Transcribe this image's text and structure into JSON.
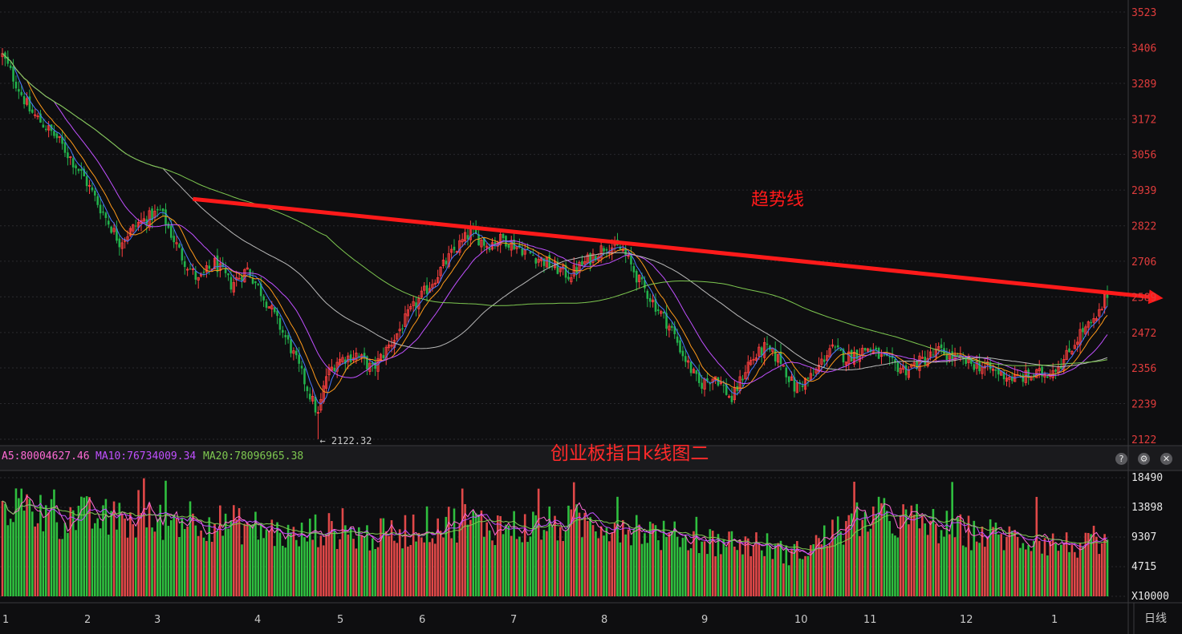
{
  "colors": {
    "background": "#0e0e10",
    "grid": "#2a2a2e",
    "up": "#ff4040",
    "down": "#22b14c",
    "axis_text": "#e03c3c",
    "ma5": "#4a78ff",
    "ma10": "#ff9a1a",
    "ma20": "#c050ff",
    "ma60": "#b8b8b8",
    "ma120": "#7ec850",
    "trend": "#ff1a1a"
  },
  "chart_title": "创业板指日k线图二",
  "annotation": {
    "trend_label": "趋势线",
    "low_label": "2122.32"
  },
  "volume_header": {
    "ma5": "A5:80004627.46",
    "ma10": "MA10:76734009.34",
    "ma20": "MA20:78096965.38"
  },
  "icons": {
    "help": "help-icon",
    "settings": "gear-icon",
    "close": "close-icon"
  },
  "icon_glyphs": {
    "help": "?",
    "settings": "⚙",
    "close": "✕"
  },
  "period_label": "日线",
  "chart_data": [
    {
      "type": "candlestick",
      "title": "",
      "ylim": [
        2122,
        3523
      ],
      "y_ticks": [
        "3523",
        "3406",
        "3289",
        "3172",
        "3056",
        "2939",
        "2822",
        "2706",
        "2589",
        "2472",
        "2356",
        "2239",
        "2122"
      ],
      "x_ticks": [
        "1",
        "2",
        "3",
        "4",
        "5",
        "6",
        "7",
        "8",
        "9",
        "10",
        "11",
        "12",
        "1"
      ],
      "low_marker": 2122.32,
      "anchors": [
        [
          0,
          3380
        ],
        [
          10,
          3200
        ],
        [
          20,
          3110
        ],
        [
          30,
          2980
        ],
        [
          36,
          2880
        ],
        [
          43,
          2770
        ],
        [
          50,
          2830
        ],
        [
          58,
          2870
        ],
        [
          66,
          2720
        ],
        [
          72,
          2640
        ],
        [
          78,
          2700
        ],
        [
          84,
          2630
        ],
        [
          90,
          2680
        ],
        [
          98,
          2560
        ],
        [
          106,
          2420
        ],
        [
          112,
          2290
        ],
        [
          116,
          2200
        ],
        [
          119,
          2330
        ],
        [
          123,
          2380
        ],
        [
          130,
          2400
        ],
        [
          136,
          2350
        ],
        [
          143,
          2440
        ],
        [
          150,
          2540
        ],
        [
          158,
          2640
        ],
        [
          166,
          2740
        ],
        [
          172,
          2800
        ],
        [
          178,
          2760
        ],
        [
          184,
          2780
        ],
        [
          192,
          2740
        ],
        [
          200,
          2700
        ],
        [
          208,
          2660
        ],
        [
          214,
          2700
        ],
        [
          222,
          2760
        ],
        [
          228,
          2740
        ],
        [
          234,
          2640
        ],
        [
          240,
          2560
        ],
        [
          246,
          2480
        ],
        [
          250,
          2400
        ],
        [
          256,
          2300
        ],
        [
          262,
          2330
        ],
        [
          268,
          2250
        ],
        [
          274,
          2370
        ],
        [
          280,
          2420
        ],
        [
          286,
          2380
        ],
        [
          291,
          2290
        ],
        [
          298,
          2330
        ],
        [
          304,
          2420
        ],
        [
          310,
          2390
        ],
        [
          318,
          2420
        ],
        [
          326,
          2370
        ],
        [
          332,
          2350
        ],
        [
          338,
          2380
        ],
        [
          344,
          2410
        ],
        [
          352,
          2380
        ],
        [
          360,
          2360
        ],
        [
          366,
          2340
        ],
        [
          372,
          2320
        ],
        [
          378,
          2330
        ],
        [
          384,
          2340
        ],
        [
          390,
          2380
        ],
        [
          396,
          2470
        ],
        [
          402,
          2510
        ],
        [
          406,
          2600
        ]
      ],
      "ma_series": [
        {
          "name": "ma5",
          "period": 5
        },
        {
          "name": "ma10",
          "period": 10
        },
        {
          "name": "ma20",
          "period": 20
        },
        {
          "name": "ma60",
          "period": 60
        },
        {
          "name": "ma120",
          "period": 120
        }
      ],
      "trendline": [
        [
          70,
          2910
        ],
        [
          406,
          2603
        ]
      ]
    },
    {
      "type": "bar",
      "title": "",
      "ylim": [
        0,
        18490
      ],
      "y_ticks": [
        "18490",
        "13898",
        "9307",
        "4715",
        "X10000"
      ],
      "ma_series": [
        {
          "name": "ma5",
          "period": 5
        },
        {
          "name": "ma10",
          "period": 10
        },
        {
          "name": "ma20",
          "period": 20
        }
      ],
      "anchors": [
        [
          0,
          15000
        ],
        [
          10,
          13500
        ],
        [
          20,
          12000
        ],
        [
          28,
          12500
        ],
        [
          38,
          12000
        ],
        [
          50,
          11500
        ],
        [
          60,
          11800
        ],
        [
          70,
          12500
        ],
        [
          78,
          11500
        ],
        [
          90,
          11000
        ],
        [
          100,
          10000
        ],
        [
          108,
          9000
        ],
        [
          116,
          10500
        ],
        [
          124,
          10000
        ],
        [
          134,
          9300
        ],
        [
          144,
          9800
        ],
        [
          152,
          10800
        ],
        [
          160,
          11200
        ],
        [
          170,
          11800
        ],
        [
          180,
          11000
        ],
        [
          190,
          10800
        ],
        [
          200,
          11000
        ],
        [
          210,
          11300
        ],
        [
          220,
          11600
        ],
        [
          232,
          11000
        ],
        [
          244,
          9300
        ],
        [
          256,
          8800
        ],
        [
          268,
          8500
        ],
        [
          280,
          8000
        ],
        [
          290,
          6500
        ],
        [
          298,
          8000
        ],
        [
          306,
          10000
        ],
        [
          314,
          11500
        ],
        [
          322,
          12300
        ],
        [
          332,
          11800
        ],
        [
          342,
          11000
        ],
        [
          354,
          10000
        ],
        [
          366,
          9500
        ],
        [
          376,
          8800
        ],
        [
          386,
          8300
        ],
        [
          396,
          7900
        ],
        [
          403,
          7600
        ]
      ]
    }
  ]
}
